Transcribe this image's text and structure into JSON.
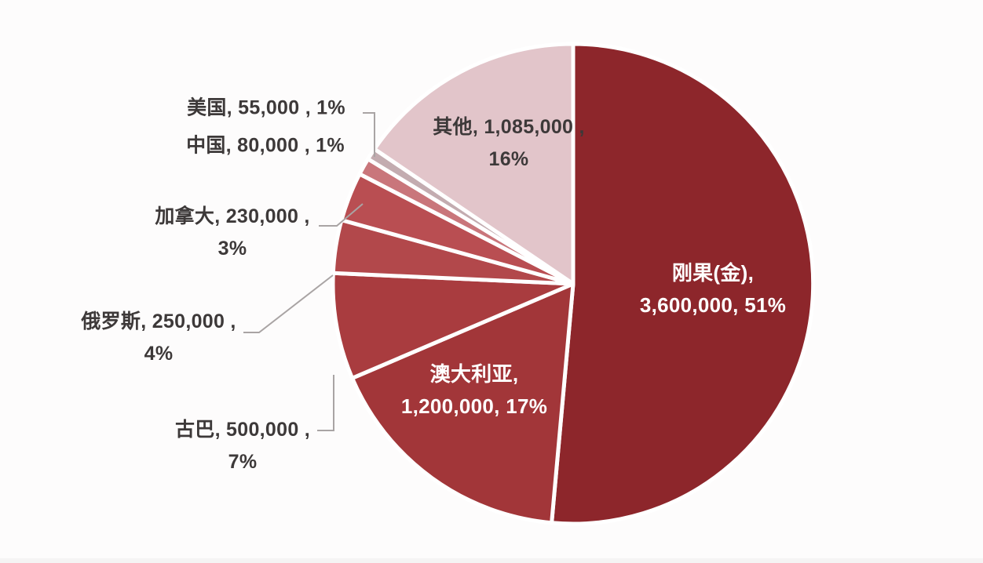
{
  "chart_data": {
    "type": "pie",
    "title": "",
    "legend": "none",
    "start_angle_deg": 0,
    "direction": "clockwise",
    "total": 7000000,
    "border_color": "#ffffff",
    "leader_line_color": "#a9a4a4",
    "label_color_outside": "#3d3939",
    "label_color_inside": "#ffffff",
    "slices": [
      {
        "key": "congo",
        "name": "刚果(金)",
        "value": 3600000,
        "value_label": "3,600,000",
        "pct_label": "51%",
        "color": "#8d262b",
        "label_placement": "inside",
        "label_lines": [
          "刚果(金),",
          "3,600,000, 51%"
        ]
      },
      {
        "key": "australia",
        "name": "澳大利亚",
        "value": 1200000,
        "value_label": "1,200,000",
        "pct_label": "17%",
        "color": "#a23639",
        "label_placement": "inside",
        "label_lines": [
          "澳大利亚,",
          "1,200,000, 17%"
        ]
      },
      {
        "key": "cuba",
        "name": "古巴",
        "value": 500000,
        "value_label": "500,000",
        "pct_label": "7%",
        "color": "#a93c3f",
        "label_placement": "outside",
        "label_lines": [
          "古巴, 500,000 ,",
          "7%"
        ]
      },
      {
        "key": "russia",
        "name": "俄罗斯",
        "value": 250000,
        "value_label": "250,000",
        "pct_label": "4%",
        "color": "#b2484b",
        "label_placement": "outside",
        "label_lines": [
          "俄罗斯, 250,000 ,",
          "4%"
        ]
      },
      {
        "key": "canada",
        "name": "加拿大",
        "value": 230000,
        "value_label": "230,000",
        "pct_label": "3%",
        "color": "#b94e52",
        "label_placement": "outside",
        "label_lines": [
          "加拿大, 230,000 ,",
          "3%"
        ]
      },
      {
        "key": "china",
        "name": "中国",
        "value": 80000,
        "value_label": "80,000",
        "pct_label": "1%",
        "color": "#c9767b",
        "label_placement": "outside",
        "label_lines": [
          "中国, 80,000 , 1%"
        ]
      },
      {
        "key": "usa",
        "name": "美国",
        "value": 55000,
        "value_label": "55,000",
        "pct_label": "1%",
        "color": "#c3acb0",
        "label_placement": "outside",
        "label_lines": [
          "美国, 55,000 , 1%"
        ]
      },
      {
        "key": "other",
        "name": "其他",
        "value": 1085000,
        "value_label": "1,085,000",
        "pct_label": "16%",
        "color": "#e2c5ca",
        "label_placement": "outside",
        "label_lines": [
          "其他, 1,085,000 ,",
          "16%"
        ]
      }
    ]
  }
}
